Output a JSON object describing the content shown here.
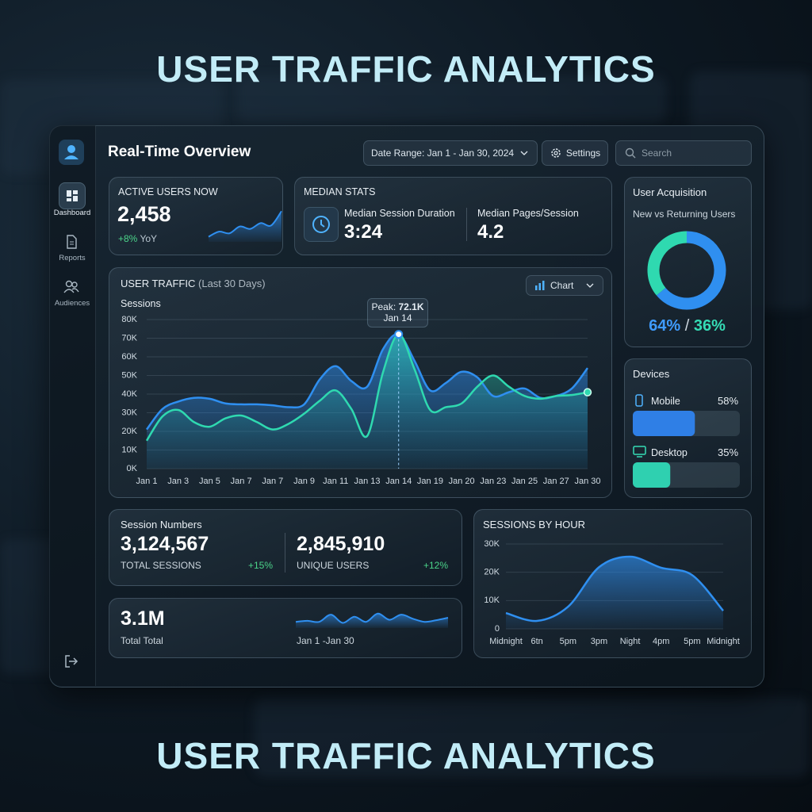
{
  "headline": {
    "top": "USER TRAFFIC ANALYTICS",
    "bottom": "USER TRAFFIC ANALYTICS"
  },
  "sidebar": {
    "items": [
      "Dashboard",
      "Reports",
      "Audiences"
    ]
  },
  "toolbar": {
    "title": "Real-Time Overview",
    "date_range": "Date Range: Jan 1 - Jan 30, 2024",
    "settings": "Settings",
    "search_placeholder": "Search"
  },
  "active_users": {
    "label": "ACTIVE USERS NOW",
    "value": "2,458",
    "change": "+8%",
    "change_suffix": "YoY",
    "sparkline": [
      15,
      30,
      25,
      45,
      38,
      55,
      48,
      90
    ],
    "color": "#2f8ff0"
  },
  "median_stats": {
    "label": "MEDIAN STATS",
    "items": [
      {
        "label": "Median Session Duration",
        "value": "3:24"
      },
      {
        "label": "Median Pages/Session",
        "value": "4.2"
      }
    ]
  },
  "user_acquisition": {
    "type": "pie",
    "title": "User Acquisition",
    "subtitle": "New vs Returning Users",
    "values": [
      64,
      36
    ],
    "value_labels": [
      "64%",
      "36%"
    ],
    "separator": "/",
    "colors": [
      "#2f8ff0",
      "#2fd9b0"
    ]
  },
  "devices": {
    "type": "bar",
    "title": "Devices",
    "categories": [
      "Mobile",
      "Desktop"
    ],
    "values": [
      58,
      35
    ],
    "value_labels": [
      "58%",
      "35%"
    ],
    "colors": [
      "#2f7fe6",
      "#2fd0b0"
    ]
  },
  "user_traffic": {
    "type": "line",
    "title": "USER TRAFFIC",
    "subtitle": "(Last 30 Days)",
    "ylabel": "Sessions",
    "button": "Chart",
    "annotation": {
      "prefix": "Peak:",
      "value": "72.1K",
      "category": "Jan 14"
    },
    "categories": [
      "Jan 1",
      null,
      "Jan 3",
      null,
      "Jan 5",
      null,
      "Jan 7",
      null,
      "Jan 7",
      null,
      "Jan 9",
      null,
      "Jan 11",
      null,
      "Jan 13",
      null,
      "Jan 14",
      null,
      "Jan 19",
      null,
      "Jan 20",
      null,
      "Jan 23",
      null,
      "Jan 25",
      null,
      "Jan 27",
      null,
      "Jan 30"
    ],
    "series": [
      {
        "color": "#2f8ff0",
        "values": [
          21,
          32,
          36,
          38,
          37.5,
          35,
          34.5,
          34.5,
          34,
          33,
          34.5,
          48,
          55,
          47,
          44,
          64,
          72.1,
          58,
          42,
          46,
          52,
          49,
          39,
          41,
          43,
          38,
          39,
          43,
          54
        ]
      },
      {
        "color": "#2fd9b0",
        "values": [
          15,
          28,
          31.5,
          25,
          22.5,
          27,
          28.5,
          25,
          21,
          24,
          29.5,
          36.5,
          42,
          32,
          17.5,
          51.5,
          72.1,
          53.5,
          31.5,
          33,
          35,
          44,
          50,
          44,
          39,
          37.5,
          39,
          39.5,
          41
        ]
      }
    ],
    "ylim": [
      0,
      80
    ],
    "yticks": [
      {
        "value": 0,
        "label": "0K"
      },
      {
        "value": 10,
        "label": "10K"
      },
      {
        "value": 20,
        "label": "20K"
      },
      {
        "value": 30,
        "label": "30K"
      },
      {
        "value": 40,
        "label": "40K"
      },
      {
        "value": 50,
        "label": "50K"
      },
      {
        "value": 60,
        "label": "60K"
      },
      {
        "value": 70,
        "label": "70K"
      },
      {
        "value": 80,
        "label": "80K"
      }
    ],
    "grid": true
  },
  "session_numbers": {
    "title": "Session Numbers",
    "items": [
      {
        "value": "3,124,567",
        "label": "TOTAL SESSIONS",
        "change": "+15%"
      },
      {
        "value": "2,845,910",
        "label": "UNIQUE USERS",
        "change": "+12%"
      }
    ]
  },
  "total": {
    "value": "3.1M",
    "label": "Total Total",
    "range": "Jan 1 -Jan 30",
    "sparkline": [
      30,
      35,
      30,
      65,
      25,
      55,
      30,
      70,
      40,
      65,
      45,
      30,
      38,
      50
    ],
    "color": "#2f8ff0"
  },
  "sessions_by_hour": {
    "type": "line",
    "title": "SESSIONS BY HOUR",
    "color": "#2f8ff0",
    "categories": [
      "Midnight",
      "6tn",
      "5pm",
      "3pm",
      "Night",
      "4pm",
      "5pm",
      "Midnight"
    ],
    "values": [
      5.6,
      2.8,
      7.8,
      21.8,
      25.5,
      21.6,
      19,
      6.4
    ],
    "ylim": [
      0,
      30
    ],
    "yticks": [
      0,
      {
        "value": 10,
        "label": "10K"
      },
      {
        "value": 20,
        "label": "20K"
      },
      {
        "value": 30,
        "label": "30K"
      }
    ],
    "grid": true
  }
}
